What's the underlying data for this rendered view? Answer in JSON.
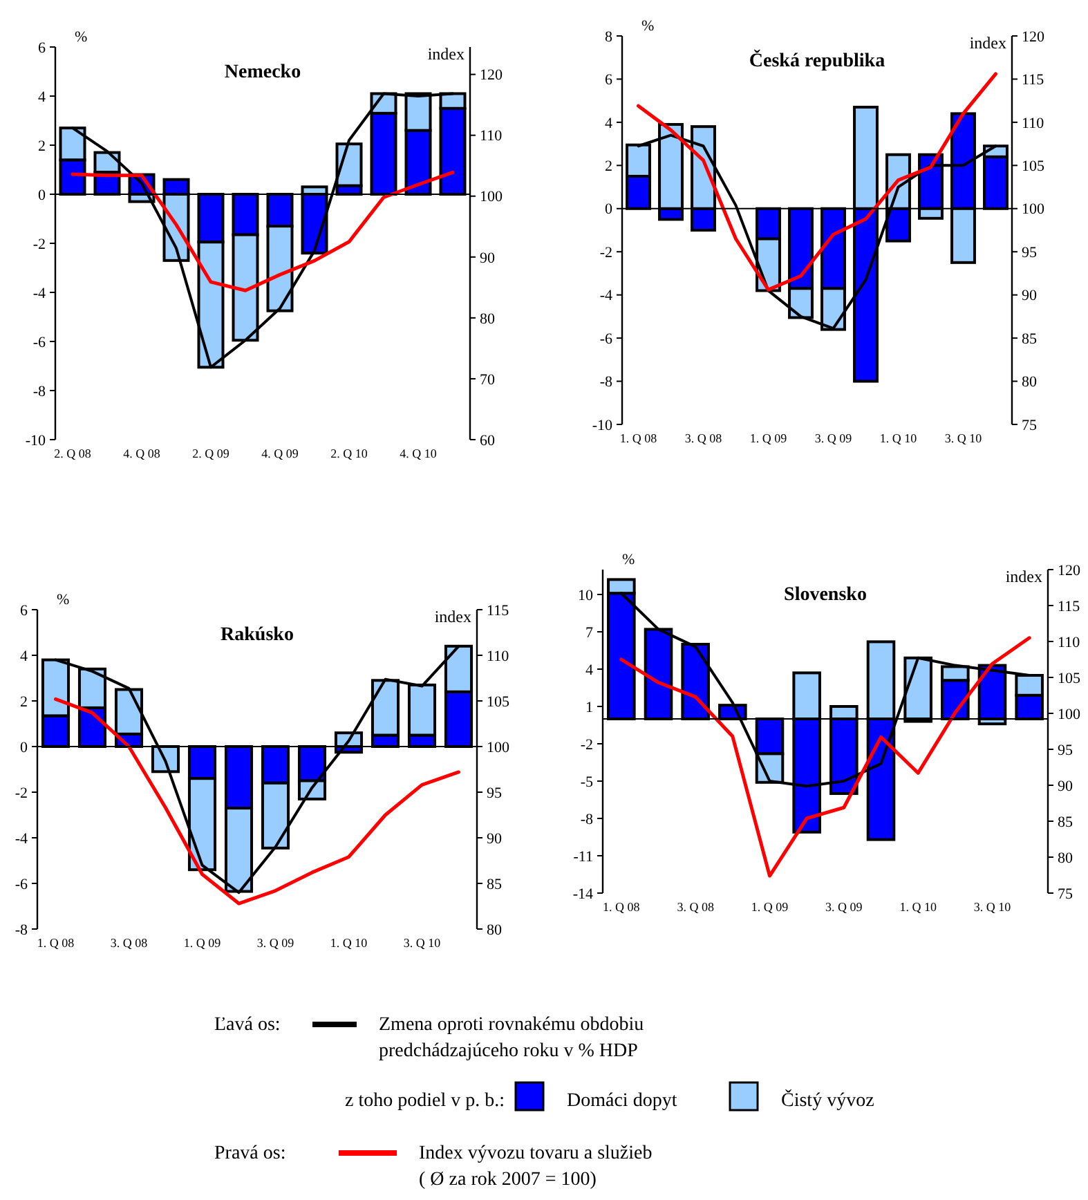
{
  "chart_data": [
    {
      "type": "bar",
      "stacked": true,
      "title": "Nemecko",
      "ylabel": "%",
      "y2label": "index",
      "categories": [
        "2. Q 08",
        null,
        "4. Q 08",
        null,
        "2. Q 09",
        null,
        "4. Q 09",
        null,
        "2. Q 10",
        null,
        "4. Q 10",
        null
      ],
      "ylim": [
        -10,
        6
      ],
      "yticks": [
        -10,
        -8,
        -6,
        -4,
        -2,
        0,
        2,
        4,
        6
      ],
      "y2lim": [
        60,
        124.5
      ],
      "y2ticks": [
        60,
        70,
        80,
        90,
        100,
        110,
        120
      ],
      "series": [
        {
          "type": "bar",
          "color": "#0000ff",
          "values": [
            1.4,
            0.9,
            0.8,
            0.6,
            -1.95,
            -1.65,
            -1.3,
            -2.4,
            0.35,
            3.3,
            2.6,
            3.5
          ]
        },
        {
          "type": "bar",
          "color": "#99ccff",
          "values": [
            1.3,
            0.8,
            -0.3,
            -2.7,
            -5.1,
            -4.3,
            -3.45,
            0.3,
            1.7,
            0.8,
            1.5,
            0.6
          ]
        },
        {
          "type": "line",
          "color": "#000000",
          "values": [
            2.7,
            1.75,
            0.45,
            -2.2,
            -7.05,
            -5.95,
            -4.65,
            -2.3,
            2.2,
            4.1,
            4.0,
            4.1
          ]
        },
        {
          "type": "line",
          "color": "#ff0000",
          "axis": "y2",
          "values": [
            103.6,
            103.4,
            103.4,
            95.3,
            85.9,
            84.5,
            87.1,
            89.4,
            92.5,
            99.8,
            101.9,
            103.9
          ]
        }
      ]
    },
    {
      "type": "bar",
      "stacked": true,
      "title": "Česká republika",
      "ylabel": "%",
      "y2label": "index",
      "categories": [
        "1. Q 08",
        null,
        "3. Q 08",
        null,
        "1. Q 09",
        null,
        "3. Q 09",
        null,
        "1. Q 10",
        null,
        "3. Q 10",
        null
      ],
      "ylim": [
        -10,
        8
      ],
      "yticks": [
        -10,
        -8,
        -6,
        -4,
        -2,
        0,
        2,
        4,
        6,
        8
      ],
      "y2lim": [
        75,
        120
      ],
      "y2ticks": [
        75,
        80,
        85,
        90,
        95,
        100,
        105,
        110,
        115,
        120
      ],
      "series": [
        {
          "type": "bar",
          "color": "#0000ff",
          "values": [
            1.5,
            -0.5,
            -1.0,
            null,
            -1.4,
            -3.7,
            -3.7,
            -8.0,
            -1.5,
            2.5,
            4.4,
            2.4
          ]
        },
        {
          "type": "bar",
          "color": "#99ccff",
          "values": [
            1.45,
            3.9,
            3.8,
            null,
            -2.4,
            -1.35,
            -1.9,
            4.7,
            2.5,
            -0.45,
            -2.5,
            0.5
          ]
        },
        {
          "type": "line",
          "color": "#000000",
          "values": [
            2.9,
            3.4,
            2.9,
            0.15,
            -3.8,
            -5.0,
            -5.55,
            -3.3,
            1.0,
            2.0,
            2.0,
            2.9
          ]
        },
        {
          "type": "line",
          "color": "#ff0000",
          "axis": "y2",
          "values": [
            111.9,
            109.1,
            105.6,
            96.5,
            90.6,
            92.2,
            97.0,
            98.8,
            103.3,
            104.8,
            111.0,
            115.6
          ]
        }
      ]
    },
    {
      "type": "bar",
      "stacked": true,
      "title": "Rakúsko",
      "ylabel": "%",
      "y2label": "index",
      "categories": [
        "1. Q 08",
        null,
        "3. Q 08",
        null,
        "1. Q 09",
        null,
        "3. Q 09",
        null,
        "1. Q 10",
        null,
        "3. Q 10",
        null
      ],
      "ylim": [
        -8,
        6
      ],
      "yticks": [
        -8,
        -6,
        -4,
        -2,
        0,
        2,
        4,
        6
      ],
      "y2lim": [
        80,
        115
      ],
      "y2ticks": [
        80,
        85,
        90,
        95,
        100,
        105,
        110,
        115
      ],
      "series": [
        {
          "type": "bar",
          "color": "#0000ff",
          "values": [
            1.35,
            1.7,
            0.55,
            null,
            -1.4,
            -2.7,
            -1.6,
            -1.5,
            -0.25,
            0.5,
            0.5,
            2.4
          ]
        },
        {
          "type": "bar",
          "color": "#99ccff",
          "values": [
            2.45,
            1.7,
            1.95,
            -1.1,
            -4.0,
            -3.65,
            -2.85,
            -0.8,
            0.6,
            2.4,
            2.2,
            2.0
          ]
        },
        {
          "type": "line",
          "color": "#000000",
          "values": [
            3.8,
            3.3,
            2.55,
            -0.65,
            -5.2,
            -6.4,
            -4.4,
            -1.8,
            0.25,
            2.95,
            2.65,
            4.4
          ]
        },
        {
          "type": "line",
          "color": "#ff0000",
          "axis": "y2",
          "values": [
            105.2,
            103.7,
            100.0,
            93.3,
            86.0,
            82.8,
            84.2,
            86.2,
            87.9,
            92.5,
            95.8,
            97.2
          ]
        }
      ]
    },
    {
      "type": "bar",
      "stacked": true,
      "title": "Slovensko",
      "ylabel": "%",
      "y2label": "index",
      "legend": "bottom",
      "categories": [
        "1. Q 08",
        null,
        "3. Q 08",
        null,
        "1. Q 09",
        null,
        "3. Q 09",
        null,
        "1. Q 10",
        null,
        "3. Q 10",
        null
      ],
      "ylim": [
        -14,
        12
      ],
      "yticks": [
        -14,
        -11,
        -8,
        -5,
        -2,
        1,
        4,
        7,
        10
      ],
      "y2lim": [
        75,
        120
      ],
      "y2ticks": [
        75,
        80,
        85,
        90,
        95,
        100,
        105,
        110,
        115,
        120
      ],
      "annotations": [
        "Ľavá os:",
        "z toho podiel v p. b.:",
        "Pravá os:"
      ],
      "series": [
        {
          "type": "bar",
          "name": "Domáci dopyt",
          "color": "#0000ff",
          "values": [
            10.1,
            7.2,
            6.0,
            1.1,
            -2.8,
            -9.1,
            -6.0,
            -9.7,
            -0.2,
            3.1,
            4.3,
            1.9
          ]
        },
        {
          "type": "bar",
          "name": "Čistý vývoz",
          "color": "#99ccff",
          "values": [
            1.1,
            0,
            0,
            0,
            -2.3,
            3.7,
            1.0,
            6.2,
            4.9,
            1.1,
            -0.4,
            1.6
          ]
        },
        {
          "type": "line",
          "name": "Zmena oproti rovnakému obdobiu predchádzajúceho roku v % HDP",
          "color": "#000000",
          "values": [
            10.1,
            7.2,
            5.8,
            1.3,
            -5.0,
            -5.4,
            -5.0,
            -3.6,
            4.9,
            4.3,
            3.9,
            3.5
          ]
        },
        {
          "type": "line",
          "name": "Index vývozu tovaru a služieb ( Ø za rok 2007 = 100)",
          "color": "#ff0000",
          "axis": "y2",
          "values": [
            107.5,
            104.3,
            102.3,
            96.8,
            77.4,
            85.4,
            86.9,
            96.7,
            91.7,
            100.1,
            106.9,
            110.5
          ]
        }
      ]
    }
  ]
}
